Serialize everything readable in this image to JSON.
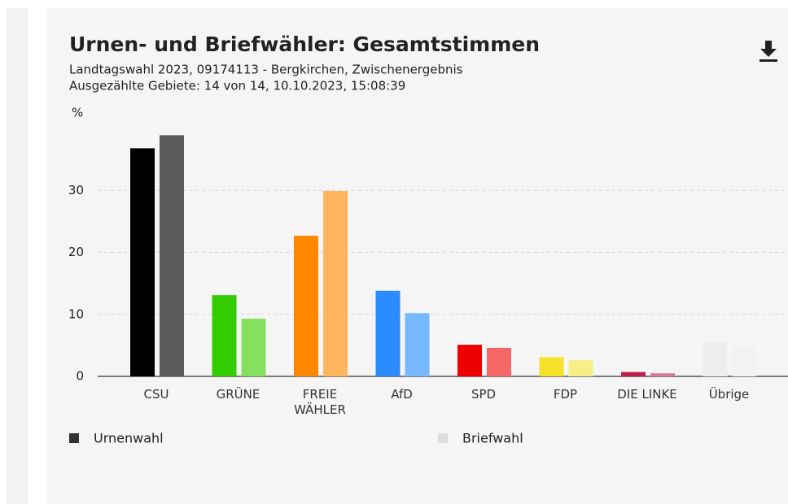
{
  "chart_data": {
    "type": "bar",
    "title": "Urnen- und Briefwähler: Gesamtstimmen",
    "subtitle_lines": [
      "Landtagswahl 2023, 09174113 - Bergkirchen, Zwischenergebnis",
      "Ausgezählte Gebiete: 14 von 14, 10.10.2023, 15:08:39"
    ],
    "y_label": "%",
    "categories": [
      "CSU",
      "GRÜNE",
      "FREIE WÄHLER",
      "AfD",
      "SPD",
      "FDP",
      "DIE LINKE",
      "Übrige"
    ],
    "series": [
      {
        "name": "Urnenwahl",
        "color": "#333333",
        "colors": [
          "#000000",
          "#33cc00",
          "#ff8800",
          "#2b8cff",
          "#ee0000",
          "#f5e02a",
          "#be1e4b",
          "#eeeeee"
        ],
        "values": [
          36.8,
          13.1,
          22.7,
          13.8,
          5.1,
          3.1,
          0.7,
          5.5
        ]
      },
      {
        "name": "Briefwahl",
        "color": "#dddddd",
        "colors": [
          "#5a5a5a",
          "#85e060",
          "#ffb55c",
          "#77b8ff",
          "#f56666",
          "#f7ee88",
          "#d9799a",
          "#f2f2f2"
        ],
        "values": [
          38.9,
          9.3,
          29.9,
          10.2,
          4.6,
          2.6,
          0.5,
          4.7
        ]
      }
    ],
    "ylim": [
      0,
      40
    ],
    "yticks": [
      0,
      10,
      20,
      30
    ],
    "grid": true
  }
}
